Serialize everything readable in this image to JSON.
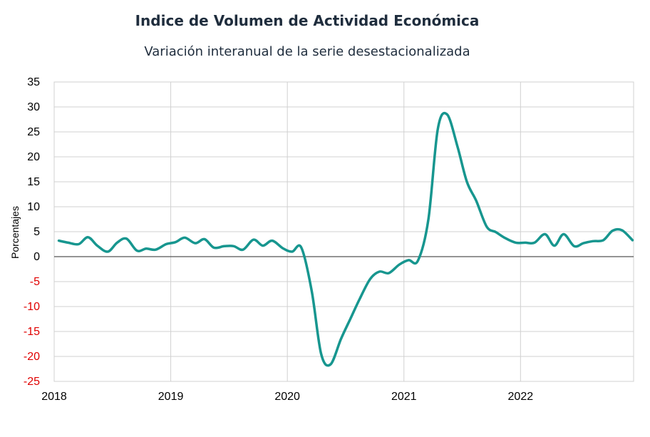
{
  "chart_data": {
    "type": "line",
    "title": "Indice de Volumen de  Actividad Económica",
    "subtitle": "Variación interanual de la serie desestacionalizada",
    "xlabel": "",
    "ylabel": "Porcentajes",
    "ylim": [
      -25,
      35
    ],
    "yticks": [
      35,
      30,
      25,
      20,
      15,
      10,
      5,
      0,
      -5,
      -10,
      -15,
      -20,
      -25
    ],
    "xlim": [
      2018.0,
      2022.97
    ],
    "xticks": [
      "2018",
      "2019",
      "2020",
      "2021",
      "2022"
    ],
    "grid": true,
    "colors": {
      "line": "#17968f",
      "negative_tick": "#e00000",
      "positive_tick": "#000000",
      "grid": "#d0d0d0",
      "zero_line": "#555555"
    },
    "series": [
      {
        "values": [
          [
            2018.04,
            3.2
          ],
          [
            2018.12,
            2.8
          ],
          [
            2018.21,
            2.5
          ],
          [
            2018.29,
            3.9
          ],
          [
            2018.37,
            2.2
          ],
          [
            2018.46,
            1.0
          ],
          [
            2018.54,
            2.8
          ],
          [
            2018.62,
            3.6
          ],
          [
            2018.71,
            1.2
          ],
          [
            2018.79,
            1.6
          ],
          [
            2018.87,
            1.4
          ],
          [
            2018.96,
            2.5
          ],
          [
            2019.04,
            2.9
          ],
          [
            2019.12,
            3.8
          ],
          [
            2019.21,
            2.7
          ],
          [
            2019.29,
            3.5
          ],
          [
            2019.37,
            1.8
          ],
          [
            2019.46,
            2.1
          ],
          [
            2019.54,
            2.1
          ],
          [
            2019.62,
            1.4
          ],
          [
            2019.71,
            3.4
          ],
          [
            2019.79,
            2.2
          ],
          [
            2019.87,
            3.2
          ],
          [
            2019.96,
            1.7
          ],
          [
            2020.04,
            1.0
          ],
          [
            2020.12,
            1.8
          ],
          [
            2020.21,
            -7.0
          ],
          [
            2020.29,
            -19.5
          ],
          [
            2020.37,
            -21.6
          ],
          [
            2020.46,
            -16.5
          ],
          [
            2020.54,
            -12.5
          ],
          [
            2020.62,
            -8.5
          ],
          [
            2020.71,
            -4.5
          ],
          [
            2020.79,
            -3.0
          ],
          [
            2020.87,
            -3.3
          ],
          [
            2020.96,
            -1.6
          ],
          [
            2021.04,
            -0.7
          ],
          [
            2021.12,
            -0.8
          ],
          [
            2021.21,
            7.5
          ],
          [
            2021.29,
            25.5
          ],
          [
            2021.37,
            28.5
          ],
          [
            2021.46,
            22.0
          ],
          [
            2021.54,
            15.0
          ],
          [
            2021.62,
            11.2
          ],
          [
            2021.71,
            6.0
          ],
          [
            2021.79,
            4.9
          ],
          [
            2021.87,
            3.7
          ],
          [
            2021.96,
            2.8
          ],
          [
            2022.04,
            2.8
          ],
          [
            2022.12,
            2.8
          ],
          [
            2022.21,
            4.5
          ],
          [
            2022.29,
            2.2
          ],
          [
            2022.37,
            4.5
          ],
          [
            2022.46,
            2.1
          ],
          [
            2022.54,
            2.7
          ],
          [
            2022.62,
            3.1
          ],
          [
            2022.71,
            3.3
          ],
          [
            2022.79,
            5.2
          ],
          [
            2022.87,
            5.3
          ],
          [
            2022.96,
            3.3
          ]
        ]
      }
    ]
  }
}
